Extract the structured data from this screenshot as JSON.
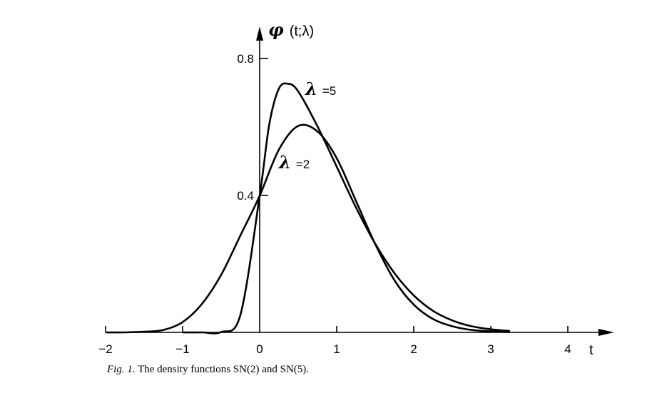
{
  "chart_data": {
    "type": "line",
    "ylabel": {
      "symbol": "φ",
      "args": "(t;λ)"
    },
    "xlabel": "t",
    "x_ticks": [
      {
        "value": -2,
        "label": "−2"
      },
      {
        "value": -1,
        "label": "−1"
      },
      {
        "value": 0,
        "label": "0"
      },
      {
        "value": 1,
        "label": "1"
      },
      {
        "value": 2,
        "label": "2"
      },
      {
        "value": 3,
        "label": "3"
      },
      {
        "value": 4,
        "label": "4"
      }
    ],
    "y_ticks": [
      {
        "value": 0.4,
        "label": "0.4"
      },
      {
        "value": 0.8,
        "label": "0.8"
      }
    ],
    "xlim": [
      -2,
      4.6
    ],
    "ylim": [
      0,
      0.9
    ],
    "grid": false,
    "series": [
      {
        "name": "λ = 2",
        "label_symbol": "λ",
        "label_text": "=2",
        "x": [
          -2.0,
          -1.75,
          -1.5,
          -1.25,
          -1.0,
          -0.75,
          -0.5,
          -0.25,
          0.0,
          0.25,
          0.5,
          0.75,
          1.0,
          1.25,
          1.5,
          1.75,
          2.0,
          2.25,
          2.5,
          2.75,
          3.0,
          3.25
        ],
        "y": [
          0.0,
          0.0,
          0.002,
          0.007,
          0.03,
          0.083,
          0.168,
          0.283,
          0.399,
          0.534,
          0.603,
          0.587,
          0.509,
          0.384,
          0.258,
          0.152,
          0.081,
          0.039,
          0.018,
          0.007,
          0.003,
          0.001
        ]
      },
      {
        "name": "λ = 5",
        "label_symbol": "λ",
        "label_text": "=5",
        "x": [
          -1.0,
          -0.75,
          -0.5,
          -0.25,
          0.0,
          0.125,
          0.25,
          0.375,
          0.5,
          0.75,
          1.0,
          1.25,
          1.5,
          1.75,
          2.0,
          2.25,
          2.5,
          2.75,
          3.0,
          3.25
        ],
        "y": [
          0.0,
          0.0,
          0.001,
          0.051,
          0.399,
          0.608,
          0.712,
          0.726,
          0.704,
          0.602,
          0.484,
          0.365,
          0.259,
          0.173,
          0.108,
          0.063,
          0.035,
          0.018,
          0.009,
          0.004
        ]
      }
    ]
  },
  "caption": {
    "figure_number": "Fig. 1.",
    "text": "The density functions SN(2) and SN(5)."
  }
}
